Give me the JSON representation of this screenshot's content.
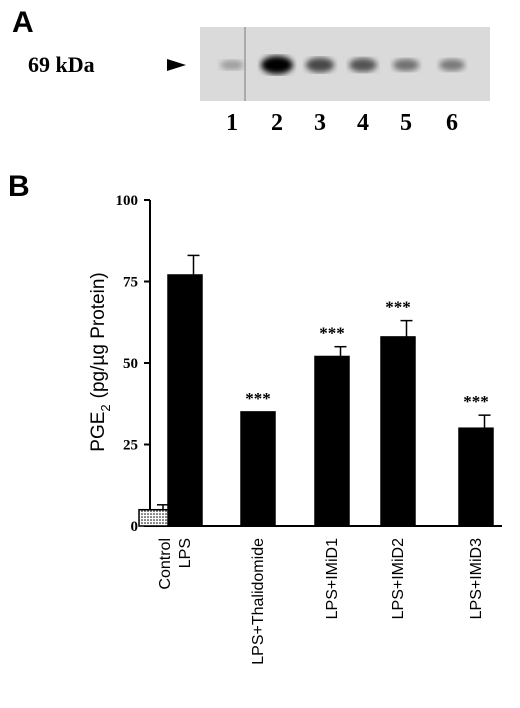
{
  "panel_a": {
    "letter": "A",
    "marker_label": "69 kDa",
    "lanes": [
      "1",
      "2",
      "3",
      "4",
      "5",
      "6"
    ],
    "band_intensity": [
      0.18,
      1.0,
      0.65,
      0.58,
      0.42,
      0.38
    ]
  },
  "panel_b": {
    "letter": "B"
  },
  "chart_data": {
    "type": "bar",
    "title": "",
    "xlabel": "",
    "ylabel_main": "PGE",
    "ylabel_sub": "2",
    "ylabel_rest": "(pg/µg Protein)",
    "ylim": [
      0,
      100
    ],
    "yticks": [
      0,
      25,
      50,
      75,
      100
    ],
    "grid": false,
    "categories": [
      "Control",
      "LPS",
      "LPS+Thalidomide",
      "LPS+IMiD1",
      "LPS+IMiD2",
      "LPS+IMiD3"
    ],
    "values": [
      5,
      77,
      35,
      52,
      58,
      30
    ],
    "errors": [
      1.5,
      6,
      0,
      3,
      5,
      4
    ],
    "annotations": [
      "",
      "",
      "***",
      "***",
      "***",
      "***"
    ],
    "fills": [
      "dotted",
      "solid",
      "solid",
      "solid",
      "solid",
      "solid"
    ]
  }
}
